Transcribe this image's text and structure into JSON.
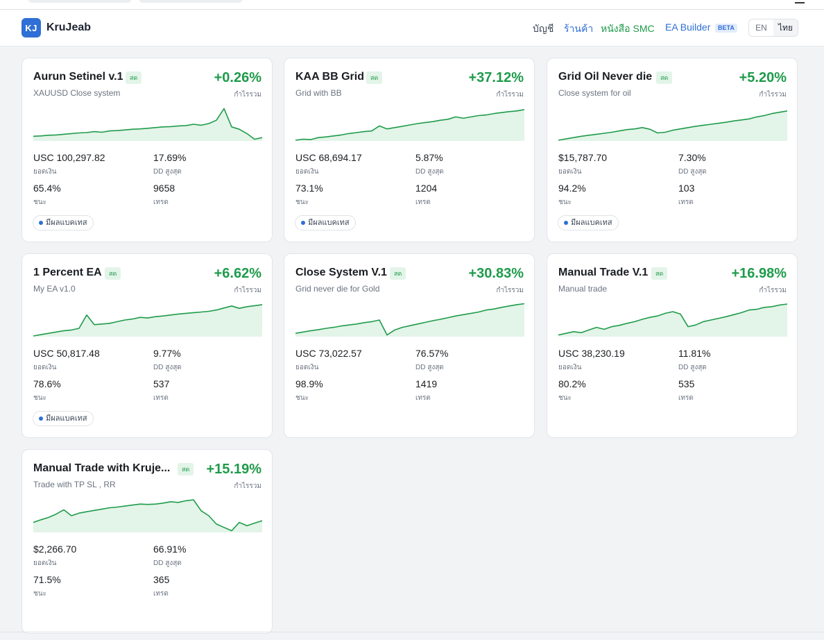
{
  "header": {
    "logo_text": "KJ",
    "brand": "KruJeab",
    "nav": {
      "accounts": "บัญชี",
      "shop": "ร้านค้า",
      "book": "หนังสือ SMC",
      "ea_builder": "EA Builder",
      "beta": "BETA"
    },
    "lang": {
      "en": "EN",
      "th": "ไทย",
      "selected": "ไทย"
    }
  },
  "colors": {
    "accent": "#2f6fd6",
    "positive": "#1e9b4a",
    "spark_fill": "#e3f4e8"
  },
  "labels": {
    "live": "สด",
    "total_profit": "กำไรรวม",
    "balance": "ยอดเงิน",
    "max_dd": "DD สูงสุด",
    "win": "ชนะ",
    "trades": "เทรด",
    "backtest": "มีผลแบคเทส"
  },
  "cards": [
    {
      "name": "Aurun Setinel v.1",
      "sub": "XAUUSD Close system",
      "profit": "+0.26%",
      "balance": "USC 100,297.82",
      "dd": "17.69%",
      "win": "65.4%",
      "trades": "9658",
      "backtest": true,
      "spark": [
        0.14,
        0.15,
        0.17,
        0.18,
        0.2,
        0.22,
        0.24,
        0.25,
        0.28,
        0.26,
        0.3,
        0.31,
        0.33,
        0.35,
        0.36,
        0.38,
        0.4,
        0.42,
        0.43,
        0.45,
        0.46,
        0.5,
        0.47,
        0.52,
        0.62,
        0.97,
        0.42,
        0.35,
        0.22,
        0.05,
        0.1
      ]
    },
    {
      "name": "KAA BB Grid",
      "sub": "Grid with BB",
      "profit": "+37.12%",
      "balance": "USC 68,694.17",
      "dd": "5.87%",
      "win": "73.1%",
      "trades": "1204",
      "backtest": true,
      "spark": [
        0.02,
        0.05,
        0.04,
        0.1,
        0.12,
        0.15,
        0.18,
        0.22,
        0.25,
        0.28,
        0.3,
        0.45,
        0.36,
        0.4,
        0.44,
        0.48,
        0.52,
        0.55,
        0.58,
        0.62,
        0.65,
        0.72,
        0.68,
        0.72,
        0.76,
        0.78,
        0.82,
        0.85,
        0.88,
        0.9,
        0.94
      ]
    },
    {
      "name": "Grid Oil Never die",
      "sub": "Close system for oil",
      "profit": "+5.20%",
      "balance": "$15,787.70",
      "dd": "7.30%",
      "win": "94.2%",
      "trades": "103",
      "backtest": true,
      "spark": [
        0.02,
        0.06,
        0.1,
        0.14,
        0.17,
        0.2,
        0.23,
        0.26,
        0.3,
        0.34,
        0.36,
        0.4,
        0.35,
        0.24,
        0.26,
        0.32,
        0.36,
        0.4,
        0.44,
        0.47,
        0.5,
        0.53,
        0.56,
        0.6,
        0.63,
        0.66,
        0.72,
        0.76,
        0.82,
        0.86,
        0.9
      ]
    },
    {
      "name": "1 Percent EA",
      "sub": "My EA v1.0",
      "profit": "+6.62%",
      "balance": "USC 50,817.48",
      "dd": "9.77%",
      "win": "78.6%",
      "trades": "537",
      "backtest": true,
      "spark": [
        0.02,
        0.06,
        0.1,
        0.14,
        0.18,
        0.2,
        0.25,
        0.65,
        0.36,
        0.38,
        0.4,
        0.45,
        0.5,
        0.53,
        0.58,
        0.56,
        0.6,
        0.62,
        0.65,
        0.68,
        0.7,
        0.72,
        0.74,
        0.76,
        0.8,
        0.86,
        0.92,
        0.85,
        0.9,
        0.93,
        0.96
      ]
    },
    {
      "name": "Close System V.1",
      "sub": "Grid never die for Gold",
      "profit": "+30.83%",
      "balance": "USC 73,022.57",
      "dd": "76.57%",
      "win": "98.9%",
      "trades": "1419",
      "backtest": false,
      "spark": [
        0.1,
        0.14,
        0.18,
        0.21,
        0.25,
        0.28,
        0.32,
        0.35,
        0.38,
        0.42,
        0.45,
        0.5,
        0.05,
        0.2,
        0.28,
        0.33,
        0.38,
        0.43,
        0.48,
        0.52,
        0.57,
        0.62,
        0.66,
        0.7,
        0.74,
        0.8,
        0.83,
        0.88,
        0.92,
        0.96,
        0.99
      ]
    },
    {
      "name": "Manual Trade V.1",
      "sub": "Manual trade",
      "profit": "+16.98%",
      "balance": "USC 38,230.19",
      "dd": "11.81%",
      "win": "80.2%",
      "trades": "535",
      "backtest": false,
      "spark": [
        0.05,
        0.1,
        0.15,
        0.12,
        0.2,
        0.28,
        0.22,
        0.3,
        0.34,
        0.4,
        0.45,
        0.52,
        0.58,
        0.62,
        0.7,
        0.75,
        0.68,
        0.3,
        0.35,
        0.45,
        0.5,
        0.55,
        0.6,
        0.66,
        0.72,
        0.8,
        0.82,
        0.88,
        0.9,
        0.95,
        0.98
      ]
    },
    {
      "name": "Manual Trade with Kruje...",
      "sub": "Trade with TP SL , RR",
      "profit": "+15.19%",
      "balance": "$2,266.70",
      "dd": "66.91%",
      "win": "71.5%",
      "trades": "365",
      "backtest": false,
      "spark": [
        0.3,
        0.38,
        0.45,
        0.55,
        0.68,
        0.5,
        0.58,
        0.62,
        0.66,
        0.7,
        0.74,
        0.76,
        0.79,
        0.82,
        0.85,
        0.84,
        0.85,
        0.88,
        0.92,
        0.9,
        0.95,
        0.98,
        0.65,
        0.5,
        0.25,
        0.15,
        0.05,
        0.3,
        0.2,
        0.28,
        0.35
      ]
    }
  ]
}
